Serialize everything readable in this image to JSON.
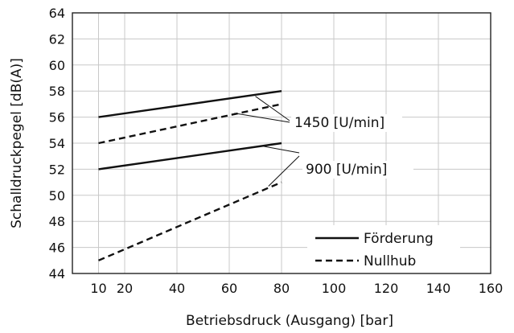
{
  "chart_data": {
    "type": "line",
    "title": "",
    "xlabel": "Betriebsdruck (Ausgang) [bar]",
    "ylabel": "Schalldruckpegel [dB(A)]",
    "xlim": [
      0,
      160
    ],
    "ylim": [
      44,
      64
    ],
    "x_ticks": [
      10,
      20,
      40,
      60,
      80,
      100,
      120,
      140,
      160
    ],
    "y_ticks": [
      44,
      46,
      48,
      50,
      52,
      54,
      56,
      58,
      60,
      62,
      64
    ],
    "grid": true,
    "legend_position": "bottom-right",
    "legend": [
      {
        "label": "Förderung",
        "style": "solid"
      },
      {
        "label": "Nullhub",
        "style": "dashed"
      }
    ],
    "series": [
      {
        "name": "Förderung",
        "speed": "1450 [U/min]",
        "style": "solid",
        "x": [
          10,
          80
        ],
        "y": [
          56,
          58
        ]
      },
      {
        "name": "Nullhub",
        "speed": "1450 [U/min]",
        "style": "dashed",
        "x": [
          10,
          80
        ],
        "y": [
          54,
          57
        ]
      },
      {
        "name": "Förderung",
        "speed": "900 [U/min]",
        "style": "solid",
        "x": [
          10,
          80
        ],
        "y": [
          52,
          54
        ]
      },
      {
        "name": "Nullhub",
        "speed": "900 [U/min]",
        "style": "dashed",
        "x": [
          10,
          80
        ],
        "y": [
          45,
          51
        ]
      }
    ],
    "annotations": [
      {
        "text": "1450 [U/min]",
        "targets_x": [
          70,
          62
        ],
        "targets_y": [
          57.6,
          56.3
        ]
      },
      {
        "text": "900 [U/min]",
        "targets_x": [
          72,
          75
        ],
        "targets_y": [
          53.8,
          50.7
        ]
      }
    ]
  }
}
